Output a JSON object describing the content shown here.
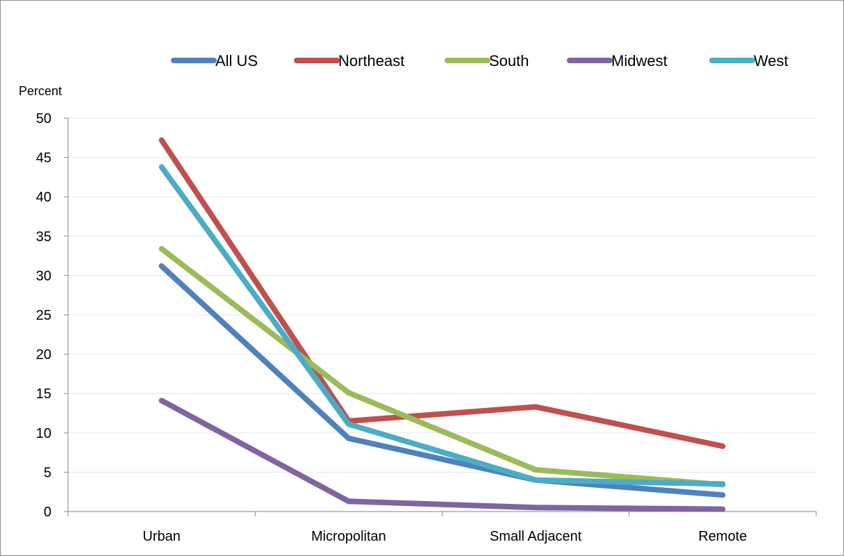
{
  "chart_data": {
    "type": "line",
    "title": "",
    "xlabel": "",
    "ylabel": "Percent",
    "categories": [
      "Urban",
      "Micropolitan",
      "Small Adjacent",
      "Remote"
    ],
    "ylim": [
      0,
      50
    ],
    "yticks": [
      0,
      5,
      10,
      15,
      20,
      25,
      30,
      35,
      40,
      45,
      50
    ],
    "grid": true,
    "legend_position": "top",
    "series": [
      {
        "name": "All US",
        "color": "#4f81bd",
        "values": [
          31.2,
          9.3,
          4.0,
          2.1
        ]
      },
      {
        "name": "Northeast",
        "color": "#c0504d",
        "values": [
          47.2,
          11.5,
          13.3,
          8.3
        ]
      },
      {
        "name": "South",
        "color": "#9bbb59",
        "values": [
          33.4,
          15.1,
          5.3,
          3.4
        ]
      },
      {
        "name": "Midwest",
        "color": "#8064a2",
        "values": [
          14.1,
          1.3,
          0.5,
          0.3
        ]
      },
      {
        "name": "West",
        "color": "#4bacc6",
        "values": [
          43.8,
          11.1,
          4.0,
          3.5
        ]
      }
    ]
  }
}
